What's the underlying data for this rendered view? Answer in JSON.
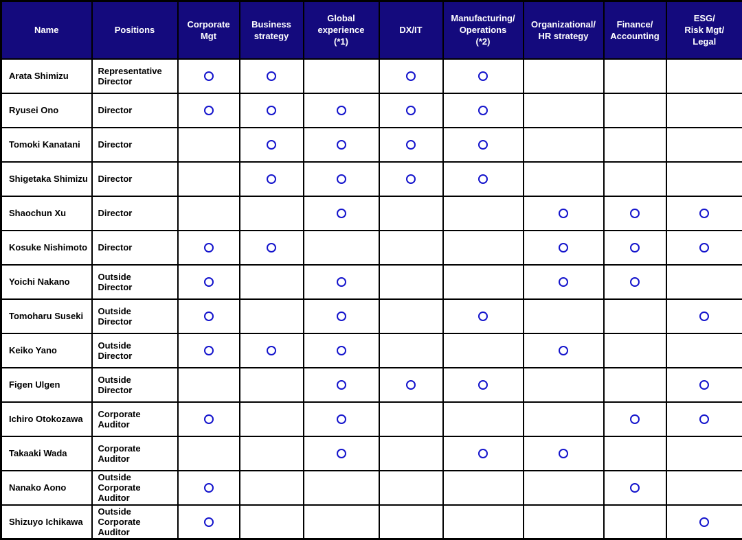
{
  "colors": {
    "header_bg": "#140a7d",
    "circle_mark": "#1414cc",
    "grid": "#000000"
  },
  "table": {
    "columns": [
      "Name",
      "Positions",
      "Corporate\nMgt",
      "Business\nstrategy",
      "Global\nexperience\n(*1)",
      "DX/IT",
      "Manufacturing/\nOperations\n(*2)",
      "Organizational/\nHR strategy",
      "Finance/\nAccounting",
      "ESG/\nRisk Mgt/\nLegal"
    ],
    "skill_column_names": [
      "Corporate Mgt",
      "Business strategy",
      "Global experience (*1)",
      "DX/IT",
      "Manufacturing/Operations (*2)",
      "Organizational/HR strategy",
      "Finance/Accounting",
      "ESG/Risk Mgt/Legal"
    ],
    "mark_glyph": "O",
    "rows": [
      {
        "name": "Arata Shimizu",
        "position": "Representative\nDirector",
        "skills": [
          1,
          1,
          0,
          1,
          1,
          0,
          0,
          0
        ]
      },
      {
        "name": "Ryusei Ono",
        "position": "Director",
        "skills": [
          1,
          1,
          1,
          1,
          1,
          0,
          0,
          0
        ]
      },
      {
        "name": "Tomoki Kanatani",
        "position": "Director",
        "skills": [
          0,
          1,
          1,
          1,
          1,
          0,
          0,
          0
        ]
      },
      {
        "name": "Shigetaka Shimizu",
        "position": "Director",
        "skills": [
          0,
          1,
          1,
          1,
          1,
          0,
          0,
          0
        ]
      },
      {
        "name": "Shaochun Xu",
        "position": "Director",
        "skills": [
          0,
          0,
          1,
          0,
          0,
          1,
          1,
          1
        ]
      },
      {
        "name": "Kosuke Nishimoto",
        "position": "Director",
        "skills": [
          1,
          1,
          0,
          0,
          0,
          1,
          1,
          1
        ]
      },
      {
        "name": "Yoichi Nakano",
        "position": "Outside\nDirector",
        "skills": [
          1,
          0,
          1,
          0,
          0,
          1,
          1,
          0
        ]
      },
      {
        "name": "Tomoharu Suseki",
        "position": "Outside\nDirector",
        "skills": [
          1,
          0,
          1,
          0,
          1,
          0,
          0,
          1
        ]
      },
      {
        "name": "Keiko Yano",
        "position": "Outside\nDirector",
        "skills": [
          1,
          1,
          1,
          0,
          0,
          1,
          0,
          0
        ]
      },
      {
        "name": "Figen Ulgen",
        "position": "Outside\nDirector",
        "skills": [
          0,
          0,
          1,
          1,
          1,
          0,
          0,
          1
        ]
      },
      {
        "name": "Ichiro Otokozawa",
        "position": "Corporate\nAuditor",
        "skills": [
          1,
          0,
          1,
          0,
          0,
          0,
          1,
          1
        ]
      },
      {
        "name": "Takaaki Wada",
        "position": "Corporate\nAuditor",
        "skills": [
          0,
          0,
          1,
          0,
          1,
          1,
          0,
          0
        ]
      },
      {
        "name": "Nanako Aono",
        "position": "Outside Corporate\nAuditor",
        "skills": [
          1,
          0,
          0,
          0,
          0,
          0,
          1,
          0
        ]
      },
      {
        "name": "Shizuyo Ichikawa",
        "position": "Outside Corporate\nAuditor",
        "skills": [
          1,
          0,
          0,
          0,
          0,
          0,
          0,
          1
        ]
      }
    ]
  }
}
